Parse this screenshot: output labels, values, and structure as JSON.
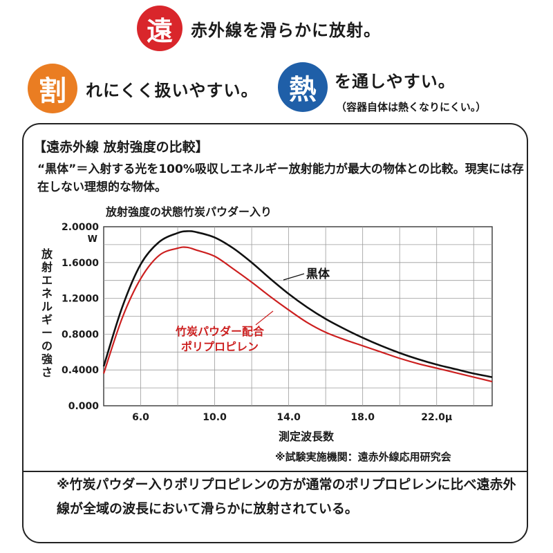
{
  "features": [
    {
      "badge": "遠",
      "text": "赤外線を滑らかに放射。",
      "color": "#d9262b"
    },
    {
      "badge": "割",
      "text": "れにくく扱いやすい。",
      "color": "#ea7d22"
    },
    {
      "badge": "熱",
      "text": "を通しやすい。",
      "sub": "（容器自体は熱くなりにくい。）",
      "color": "#1f5fa8"
    }
  ],
  "panel": {
    "title": "【遠赤外線 放射強度の比較】",
    "description": "“黒体”＝入射する光を100%吸収しエネルギー放射能力が最大の物体との比較。現実には存在しない理想的な物体。",
    "source": "※試験実施機関：遠赤外線応用研究会",
    "note": "※竹炭パウダー入りポリプロピレンの方が通常のポリプロピレンに比べ遠赤外線が全域の波長において滑らかに放射されている。"
  },
  "chart_data": {
    "type": "line",
    "title": "放射強度の状態竹炭パウダー入り",
    "xlabel": "測定波長数",
    "ylabel": "放射エネルギーの強さ",
    "y_unit": "W",
    "x_unit": "μ",
    "xlim": [
      4.0,
      25.0
    ],
    "ylim": [
      0.0,
      2.0
    ],
    "x_ticks": [
      "6.0",
      "10.0",
      "14.0",
      "18.0",
      "22.0μ"
    ],
    "x_tick_values": [
      6,
      10,
      14,
      18,
      22
    ],
    "y_ticks": [
      "0.000",
      "0.4000",
      "0.8000",
      "1.2000",
      "1.6000",
      "2.0000"
    ],
    "y_tick_values": [
      0,
      0.4,
      0.8,
      1.2,
      1.6,
      2.0
    ],
    "grid": true,
    "series": [
      {
        "name": "黒体",
        "color": "#111111",
        "x": [
          4.0,
          5.0,
          6.0,
          7.0,
          8.0,
          8.5,
          9.0,
          10.0,
          11.0,
          12.0,
          13.0,
          14.0,
          15.0,
          16.0,
          17.0,
          18.0,
          19.0,
          20.0,
          21.0,
          22.0,
          23.0,
          24.0,
          25.0
        ],
        "y": [
          0.44,
          1.1,
          1.58,
          1.83,
          1.93,
          1.95,
          1.94,
          1.88,
          1.76,
          1.6,
          1.42,
          1.25,
          1.1,
          0.97,
          0.86,
          0.76,
          0.67,
          0.59,
          0.52,
          0.46,
          0.41,
          0.36,
          0.32
        ]
      },
      {
        "name": "竹炭パウダー配合ポリプロピレン",
        "color": "#cc1f1f",
        "x": [
          4.0,
          5.0,
          6.0,
          7.0,
          8.0,
          8.5,
          9.0,
          10.0,
          11.0,
          12.0,
          13.0,
          14.0,
          15.0,
          16.0,
          17.0,
          18.0,
          19.0,
          20.0,
          21.0,
          22.0,
          23.0,
          24.0,
          25.0
        ],
        "y": [
          0.36,
          0.98,
          1.42,
          1.68,
          1.76,
          1.77,
          1.74,
          1.67,
          1.53,
          1.38,
          1.22,
          1.07,
          0.93,
          0.82,
          0.74,
          0.67,
          0.6,
          0.53,
          0.47,
          0.42,
          0.37,
          0.32,
          0.27
        ]
      }
    ],
    "annotations": [
      "黒体",
      "竹炭パウダー配合",
      "ポリプロピレン"
    ]
  }
}
